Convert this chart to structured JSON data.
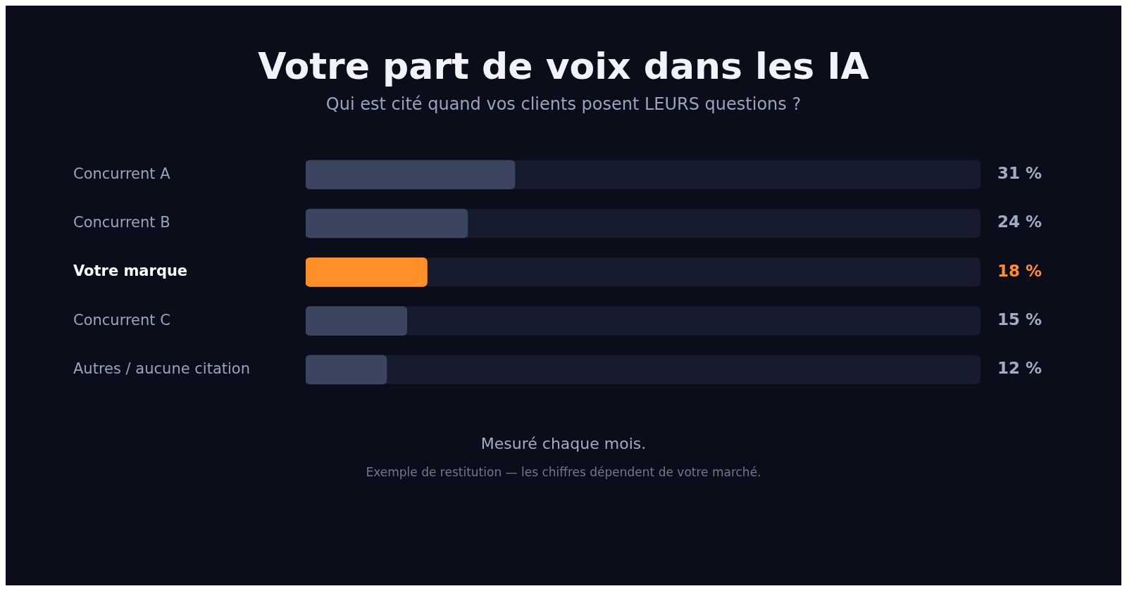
{
  "chart_data": {
    "type": "bar",
    "orientation": "horizontal",
    "title": "Votre part de voix dans les IA",
    "subtitle": "Qui est cité quand vos clients posent LEURS questions ?",
    "categories": [
      "Concurrent A",
      "Concurrent B",
      "Votre marque",
      "Concurrent C",
      "Autres / aucune citation"
    ],
    "values": [
      31,
      24,
      18,
      15,
      12
    ],
    "colors": [
      "#3b4560",
      "#3b4560",
      "#ff8f26",
      "#3b4560",
      "#3b4560"
    ],
    "value_labels": [
      "31 %",
      "24 %",
      "18 %",
      "15 %",
      "12 %"
    ],
    "xlim": [
      0,
      100
    ],
    "tick_labels": "y",
    "grid": false,
    "legend": false,
    "annotations": [
      "Mesuré chaque mois.",
      "Exemple de restitution — les chiffres dépendent de votre marché."
    ]
  }
}
